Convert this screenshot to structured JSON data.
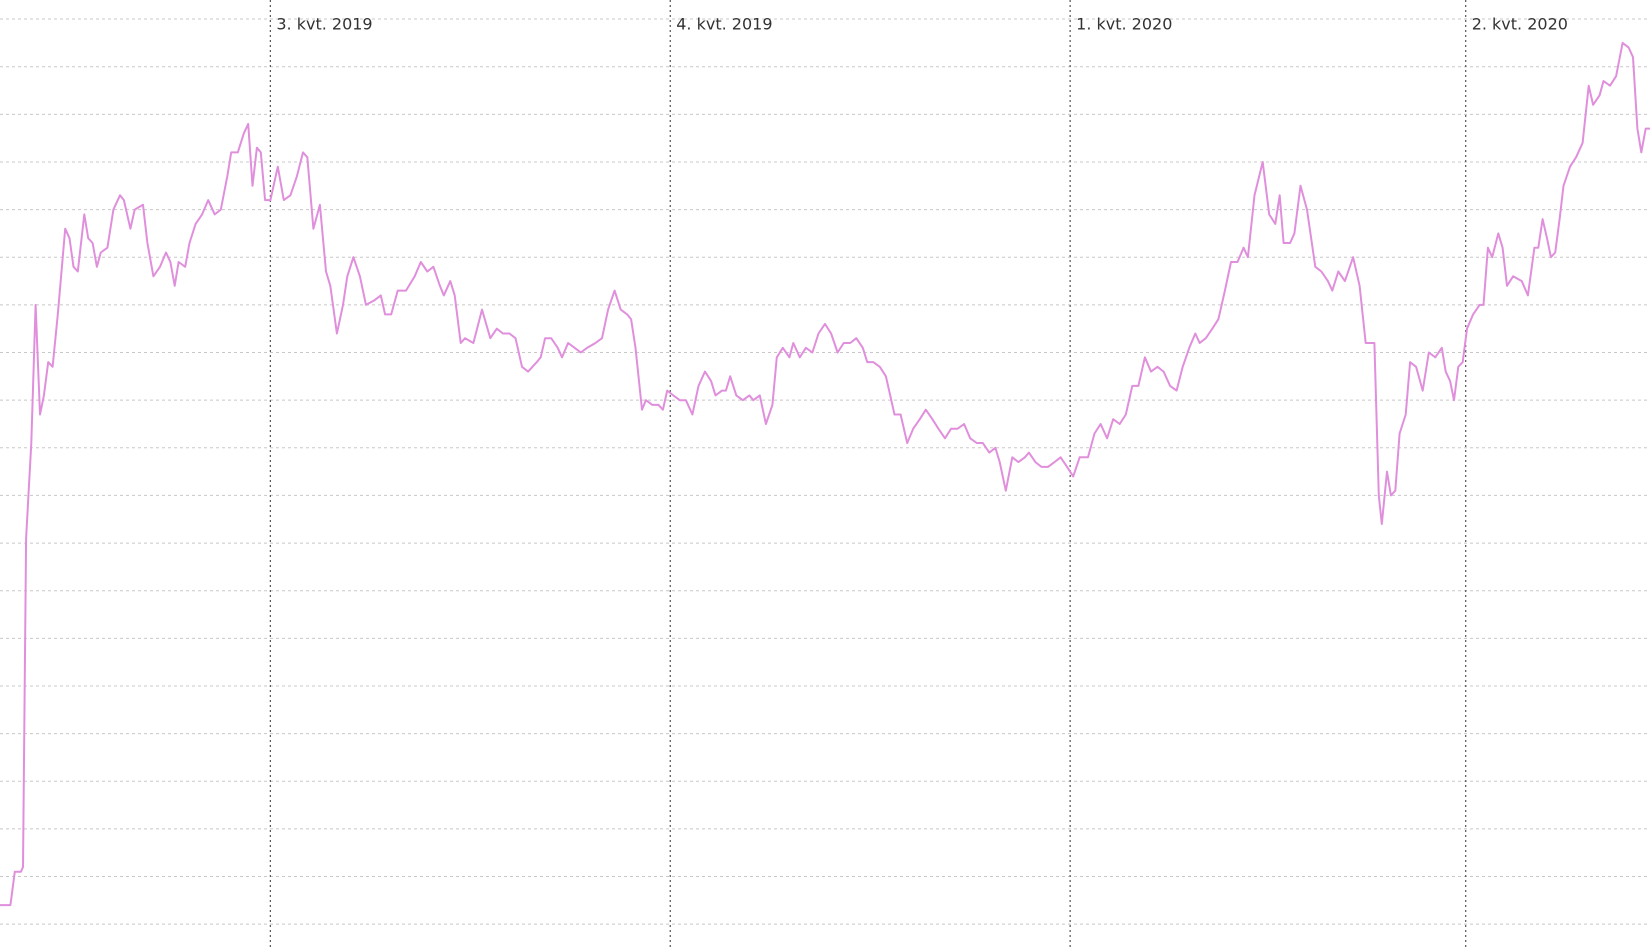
{
  "chart_data": {
    "type": "line",
    "color": "#e08fdc",
    "grid": true,
    "xlim": [
      -62.2,
      317.4
    ],
    "ylim": [
      -0.5,
      19.4
    ],
    "xticks": [
      {
        "value": 0,
        "label": "3. kvt. 2019"
      },
      {
        "value": 92,
        "label": "4. kvt. 2019"
      },
      {
        "value": 184,
        "label": "1. kvt. 2020"
      },
      {
        "value": 275,
        "label": "2. kvt. 2020"
      }
    ],
    "yticks": [
      0,
      1,
      2,
      3,
      4,
      5,
      6,
      7,
      8,
      9,
      10,
      11,
      12,
      13,
      14,
      15,
      16,
      17,
      18,
      19
    ],
    "x": [
      -62.2,
      -59.8,
      -58.8,
      -57.4,
      -56.9,
      -56.2,
      -55.0,
      -54.0,
      -53.0,
      -52.1,
      -51.1,
      -50.1,
      -48.9,
      -47.2,
      -46.2,
      -45.3,
      -44.3,
      -42.8,
      -41.9,
      -40.9,
      -39.9,
      -39.0,
      -37.5,
      -36.1,
      -34.6,
      -33.7,
      -32.2,
      -31.2,
      -29.3,
      -28.3,
      -26.9,
      -25.4,
      -24.0,
      -23.0,
      -22.0,
      -21.1,
      -19.6,
      -18.6,
      -17.2,
      -15.7,
      -14.3,
      -12.8,
      -11.4,
      -9.9,
      -9.0,
      -7.5,
      -6.1,
      -5.1,
      -4.1,
      -3.1,
      -2.2,
      -1.2,
      0.0,
      1.7,
      3.1,
      4.6,
      6.1,
      7.5,
      8.5,
      9.9,
      11.4,
      12.8,
      13.8,
      15.3,
      16.7,
      17.7,
      19.1,
      20.6,
      22.0,
      24.0,
      25.4,
      26.4,
      27.8,
      29.3,
      31.2,
      33.2,
      34.6,
      36.1,
      37.5,
      39.0,
      39.9,
      41.4,
      42.4,
      43.8,
      44.8,
      46.7,
      48.7,
      50.6,
      52.1,
      53.5,
      55.0,
      56.4,
      57.9,
      59.3,
      61.3,
      62.2,
      63.2,
      64.6,
      66.1,
      67.1,
      68.5,
      70.0,
      71.4,
      72.9,
      74.8,
      76.3,
      77.7,
      79.2,
      80.6,
      82.1,
      83.0,
      84.0,
      85.5,
      86.4,
      87.9,
      89.3,
      90.3,
      91.3,
      92.7,
      94.2,
      95.6,
      97.1,
      98.5,
      100.0,
      101.4,
      102.4,
      103.9,
      104.8,
      105.8,
      107.2,
      108.7,
      110.2,
      111.1,
      112.6,
      114.0,
      115.5,
      116.5,
      117.9,
      119.4,
      120.3,
      121.8,
      123.2,
      124.7,
      126.1,
      127.6,
      129.0,
      130.5,
      131.9,
      133.4,
      134.8,
      136.3,
      137.3,
      138.7,
      140.2,
      141.6,
      143.6,
      145.0,
      146.5,
      147.9,
      149.4,
      150.8,
      152.3,
      153.7,
      155.2,
      156.6,
      158.1,
      159.6,
      161.0,
      162.5,
      163.9,
      165.4,
      166.8,
      167.8,
      169.2,
      170.7,
      172.1,
      173.6,
      174.5,
      176.0,
      177.4,
      178.9,
      180.4,
      181.8,
      183.3,
      184.7,
      186.2,
      188.1,
      189.6,
      191.0,
      192.5,
      193.9,
      195.4,
      196.8,
      198.3,
      199.7,
      201.2,
      202.6,
      204.1,
      205.5,
      207.0,
      208.5,
      209.9,
      211.4,
      212.8,
      213.8,
      215.2,
      216.7,
      218.1,
      219.6,
      221.0,
      222.5,
      223.9,
      224.9,
      226.4,
      228.3,
      229.8,
      231.2,
      232.2,
      233.1,
      234.6,
      235.6,
      237.0,
      238.5,
      240.4,
      241.8,
      243.3,
      244.3,
      245.7,
      247.2,
      249.1,
      250.6,
      252.0,
      254.0,
      255.0,
      255.7,
      256.9,
      257.8,
      258.8,
      259.8,
      261.2,
      262.2,
      263.6,
      265.1,
      266.5,
      268.0,
      269.5,
      270.4,
      271.4,
      272.3,
      273.3,
      274.3,
      275.3,
      276.7,
      278.2,
      279.1,
      280.1,
      281.1,
      282.5,
      283.5,
      284.5,
      285.9,
      287.9,
      289.3,
      290.8,
      291.7,
      292.7,
      293.7,
      294.6,
      295.6,
      296.6,
      297.5,
      299.0,
      300.4,
      301.9,
      303.3,
      304.3,
      305.8,
      306.7,
      308.2,
      309.6,
      311.1,
      312.5,
      313.5,
      314.5,
      315.4,
      316.4,
      317.4
    ],
    "values": [
      0.4,
      0.4,
      1.1,
      1.1,
      1.2,
      8.1,
      10.1,
      13.0,
      10.7,
      11.1,
      11.8,
      11.7,
      12.8,
      14.6,
      14.4,
      13.8,
      13.7,
      14.9,
      14.4,
      14.3,
      13.8,
      14.1,
      14.2,
      15.0,
      15.3,
      15.2,
      14.6,
      15.0,
      15.1,
      14.3,
      13.6,
      13.8,
      14.1,
      13.9,
      13.4,
      13.9,
      13.8,
      14.3,
      14.7,
      14.9,
      15.2,
      14.9,
      15.0,
      15.7,
      16.2,
      16.2,
      16.6,
      16.8,
      15.5,
      16.3,
      16.2,
      15.2,
      15.2,
      15.9,
      15.2,
      15.3,
      15.7,
      16.2,
      16.1,
      14.6,
      15.1,
      13.7,
      13.4,
      12.4,
      13.0,
      13.6,
      14.0,
      13.6,
      13.0,
      13.1,
      13.2,
      12.8,
      12.8,
      13.3,
      13.3,
      13.6,
      13.9,
      13.7,
      13.8,
      13.4,
      13.2,
      13.5,
      13.2,
      12.2,
      12.3,
      12.2,
      12.9,
      12.3,
      12.5,
      12.4,
      12.4,
      12.3,
      11.7,
      11.6,
      11.8,
      11.9,
      12.3,
      12.3,
      12.1,
      11.9,
      12.2,
      12.1,
      12.0,
      12.1,
      12.2,
      12.3,
      12.9,
      13.3,
      12.9,
      12.8,
      12.7,
      12.1,
      10.8,
      11.0,
      10.9,
      10.9,
      10.8,
      11.2,
      11.1,
      11.0,
      11.0,
      10.7,
      11.3,
      11.6,
      11.4,
      11.1,
      11.2,
      11.2,
      11.5,
      11.1,
      11.0,
      11.1,
      11.0,
      11.1,
      10.5,
      10.9,
      11.9,
      12.1,
      11.9,
      12.2,
      11.9,
      12.1,
      12.0,
      12.4,
      12.6,
      12.4,
      12.0,
      12.2,
      12.2,
      12.3,
      12.1,
      11.8,
      11.8,
      11.7,
      11.5,
      10.7,
      10.7,
      10.1,
      10.4,
      10.6,
      10.8,
      10.6,
      10.4,
      10.2,
      10.4,
      10.4,
      10.5,
      10.2,
      10.1,
      10.1,
      9.9,
      10.0,
      9.7,
      9.1,
      9.8,
      9.7,
      9.8,
      9.9,
      9.7,
      9.6,
      9.6,
      9.7,
      9.8,
      9.6,
      9.4,
      9.8,
      9.8,
      10.3,
      10.5,
      10.2,
      10.6,
      10.5,
      10.7,
      11.3,
      11.3,
      11.9,
      11.6,
      11.7,
      11.6,
      11.3,
      11.2,
      11.7,
      12.1,
      12.4,
      12.2,
      12.3,
      12.5,
      12.7,
      13.3,
      13.9,
      13.9,
      14.2,
      14.0,
      15.3,
      16.0,
      14.9,
      14.7,
      15.3,
      14.3,
      14.3,
      14.5,
      15.5,
      15.0,
      13.8,
      13.7,
      13.5,
      13.3,
      13.7,
      13.5,
      14.0,
      13.4,
      12.2,
      12.2,
      9.0,
      8.4,
      9.5,
      9.0,
      9.1,
      10.3,
      10.7,
      11.8,
      11.7,
      11.2,
      12.0,
      11.9,
      12.1,
      11.6,
      11.4,
      11.0,
      11.7,
      11.8,
      12.5,
      12.8,
      13.0,
      13.0,
      14.2,
      14.0,
      14.5,
      14.2,
      13.4,
      13.6,
      13.5,
      13.2,
      14.2,
      14.2,
      14.8,
      14.4,
      14.0,
      14.1,
      14.8,
      15.5,
      15.9,
      16.1,
      16.4,
      17.6,
      17.2,
      17.4,
      17.7,
      17.6,
      17.8,
      18.5,
      18.4,
      18.2,
      16.7,
      16.2,
      16.7,
      16.7
    ]
  }
}
